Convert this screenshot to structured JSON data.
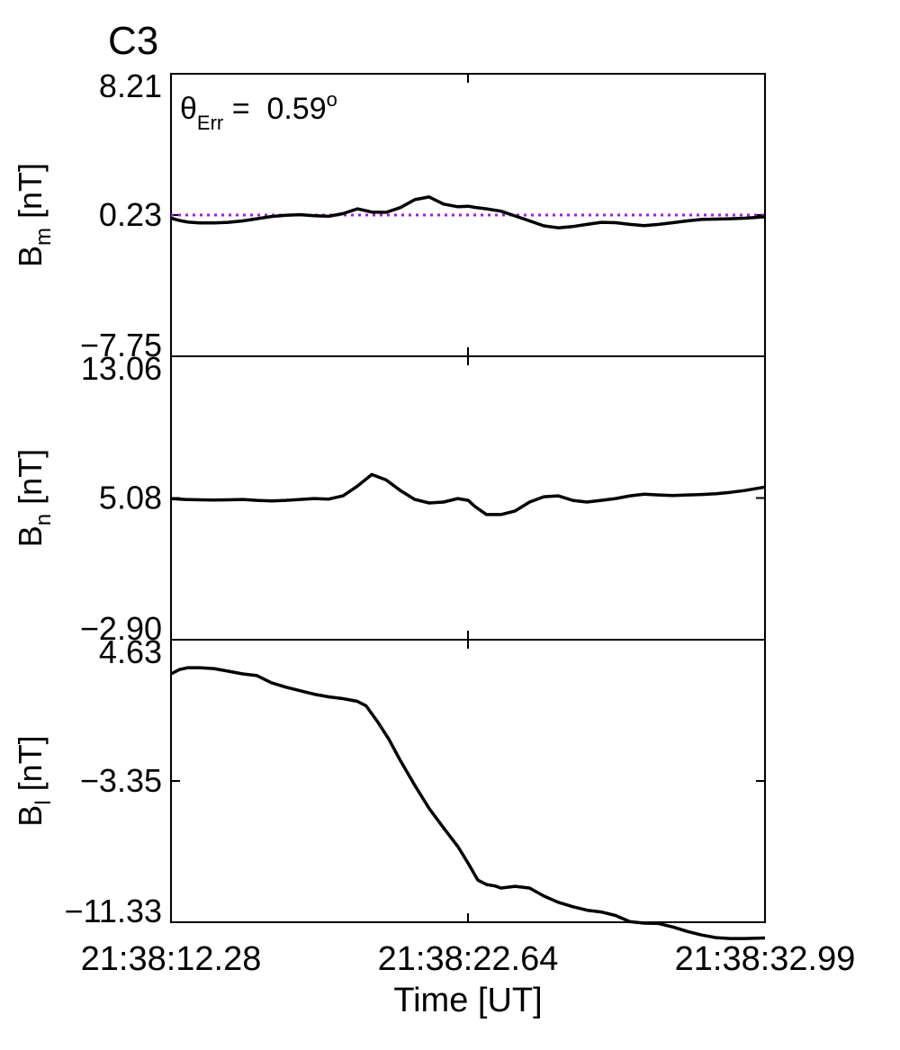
{
  "figure": {
    "spacecraft_label": "C3",
    "spacecraft_color": "#e8111a",
    "annotation": {
      "symbol": "θ",
      "subscript": "Err",
      "equals": " =  ",
      "value": "0.59",
      "superscript": "o"
    },
    "xlabel": "Time [UT]",
    "x_tick_labels": [
      "21:38:12.28",
      "21:38:22.64",
      "21:38:32.99"
    ]
  },
  "colors": {
    "trace": "#000000",
    "reference_line": "#9b1fe0"
  },
  "chart_data": [
    {
      "type": "line",
      "panel": "Bm",
      "ylabel_main": "B",
      "ylabel_sub": "m",
      "ylabel_unit": " [nT]",
      "ylim": [
        -7.75,
        8.21
      ],
      "y_tick_labels": [
        "8.21",
        "0.23",
        "-7.75"
      ],
      "reference_line": {
        "y": 0.23,
        "style": "dotted"
      },
      "x": [
        0,
        0.3,
        0.6,
        1.0,
        1.5,
        2.0,
        2.5,
        3.0,
        3.5,
        4.0,
        4.5,
        5.0,
        5.5,
        6.0,
        6.5,
        7.0,
        7.5,
        8.0,
        8.5,
        9.0,
        9.5,
        10.0,
        10.36,
        10.6,
        11.0,
        11.5,
        12.0,
        12.5,
        13.0,
        13.5,
        14.0,
        14.5,
        15.0,
        15.5,
        16.0,
        16.5,
        17.0,
        17.5,
        18.0,
        18.5,
        19.0,
        19.5,
        20.0,
        20.71
      ],
      "y": [
        0.05,
        -0.08,
        -0.17,
        -0.21,
        -0.21,
        -0.18,
        -0.1,
        0.02,
        0.15,
        0.22,
        0.25,
        0.19,
        0.16,
        0.31,
        0.58,
        0.4,
        0.38,
        0.65,
        1.1,
        1.25,
        0.85,
        0.7,
        0.73,
        0.66,
        0.58,
        0.45,
        0.18,
        -0.1,
        -0.38,
        -0.49,
        -0.42,
        -0.3,
        -0.18,
        -0.2,
        -0.3,
        -0.37,
        -0.3,
        -0.2,
        -0.1,
        -0.02,
        0.0,
        0.02,
        0.05,
        0.13
      ]
    },
    {
      "type": "line",
      "panel": "Bn",
      "ylabel_main": "B",
      "ylabel_sub": "n",
      "ylabel_unit": " [nT]",
      "ylim": [
        -2.9,
        13.06
      ],
      "y_tick_labels": [
        "13.06",
        "5.08",
        "-2.90"
      ],
      "x": [
        0,
        0.5,
        1.0,
        1.5,
        2.0,
        2.5,
        3.0,
        3.5,
        4.0,
        4.5,
        5.0,
        5.5,
        6.0,
        6.5,
        7.0,
        7.5,
        8.0,
        8.5,
        9.0,
        9.5,
        10.0,
        10.36,
        10.6,
        11.0,
        11.5,
        12.0,
        12.5,
        13.0,
        13.5,
        14.0,
        14.5,
        15.0,
        15.5,
        16.0,
        16.5,
        17.0,
        17.5,
        18.0,
        18.5,
        19.0,
        19.5,
        20.0,
        20.71
      ],
      "y": [
        5.05,
        5.0,
        4.98,
        4.97,
        4.98,
        5.0,
        4.95,
        4.92,
        4.95,
        5.0,
        5.05,
        5.02,
        5.2,
        5.75,
        6.4,
        6.1,
        5.5,
        5.0,
        4.8,
        4.85,
        5.05,
        4.95,
        4.6,
        4.15,
        4.15,
        4.35,
        4.85,
        5.15,
        5.2,
        4.95,
        4.85,
        4.95,
        5.05,
        5.2,
        5.3,
        5.25,
        5.22,
        5.25,
        5.28,
        5.32,
        5.4,
        5.5,
        5.7
      ]
    },
    {
      "type": "line",
      "panel": "Bl",
      "ylabel_main": "B",
      "ylabel_sub": "l",
      "ylabel_unit": " [nT]",
      "ylim": [
        -11.33,
        4.63
      ],
      "y_tick_labels": [
        "4.63",
        "-3.35",
        "-11.33"
      ],
      "x": [
        0,
        0.3,
        0.6,
        1.0,
        1.5,
        2.0,
        2.5,
        3.0,
        3.5,
        4.0,
        4.5,
        5.0,
        5.5,
        6.0,
        6.5,
        6.8,
        7.2,
        7.6,
        8.0,
        8.5,
        9.0,
        9.5,
        10.0,
        10.36,
        10.7,
        11.0,
        11.3,
        11.5,
        12.0,
        12.5,
        13.0,
        13.5,
        14.0,
        14.5,
        15.0,
        15.5,
        16.0,
        16.5,
        17.0,
        17.5,
        18.0,
        18.5,
        19.0,
        19.5,
        20.0,
        20.71
      ],
      "y": [
        2.7,
        2.95,
        3.05,
        3.05,
        3.0,
        2.85,
        2.7,
        2.6,
        2.2,
        1.95,
        1.75,
        1.55,
        1.4,
        1.3,
        1.15,
        0.9,
        0.0,
        -1.0,
        -2.2,
        -3.6,
        -4.9,
        -6.0,
        -7.05,
        -8.0,
        -8.95,
        -9.2,
        -9.28,
        -9.4,
        -9.3,
        -9.4,
        -9.85,
        -10.2,
        -10.45,
        -10.65,
        -10.75,
        -10.95,
        -11.3,
        -11.38,
        -11.4,
        -11.6,
        -11.85,
        -12.05,
        -12.2,
        -12.25,
        -12.25,
        -12.22
      ]
    }
  ]
}
